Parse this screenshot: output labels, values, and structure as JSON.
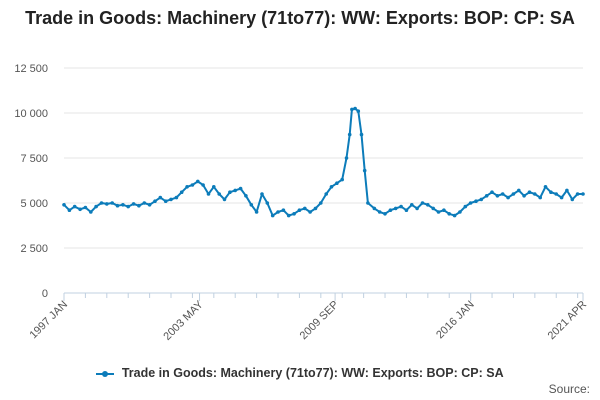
{
  "chart_data": {
    "type": "line",
    "title": "Trade in Goods: Machinery (71to77): WW: Exports: BOP: CP: SA",
    "ylim": [
      0,
      12500
    ],
    "yticks": [
      0,
      2500,
      5000,
      7500,
      10000,
      12500
    ],
    "ytick_labels": [
      "0",
      "2 500",
      "5 000",
      "7 500",
      "10 000",
      "12 500"
    ],
    "xlim": [
      1997.0,
      2021.25
    ],
    "xtick_labels": [
      "1997 JAN",
      "2003 MAY",
      "2009 SEP",
      "2016 JAN",
      "2021 APR"
    ],
    "xtick_values": [
      1997.0,
      2003.333,
      2009.667,
      2016.0,
      2021.25
    ],
    "grid": true,
    "legend_position": "bottom",
    "series": [
      {
        "name": "Trade in Goods: Machinery (71to77): WW: Exports: BOP: CP: SA",
        "color": "#0c7cba",
        "points": [
          [
            1997.0,
            4900
          ],
          [
            1997.25,
            4600
          ],
          [
            1997.5,
            4800
          ],
          [
            1997.75,
            4650
          ],
          [
            1998.0,
            4750
          ],
          [
            1998.25,
            4500
          ],
          [
            1998.5,
            4800
          ],
          [
            1998.75,
            5000
          ],
          [
            1999.0,
            4950
          ],
          [
            1999.25,
            5000
          ],
          [
            1999.5,
            4850
          ],
          [
            1999.75,
            4900
          ],
          [
            2000.0,
            4800
          ],
          [
            2000.25,
            4950
          ],
          [
            2000.5,
            4850
          ],
          [
            2000.75,
            5000
          ],
          [
            2001.0,
            4900
          ],
          [
            2001.25,
            5100
          ],
          [
            2001.5,
            5300
          ],
          [
            2001.75,
            5100
          ],
          [
            2002.0,
            5200
          ],
          [
            2002.25,
            5300
          ],
          [
            2002.5,
            5600
          ],
          [
            2002.75,
            5900
          ],
          [
            2003.0,
            6000
          ],
          [
            2003.25,
            6200
          ],
          [
            2003.5,
            6000
          ],
          [
            2003.75,
            5500
          ],
          [
            2004.0,
            5900
          ],
          [
            2004.25,
            5500
          ],
          [
            2004.5,
            5200
          ],
          [
            2004.75,
            5600
          ],
          [
            2005.0,
            5700
          ],
          [
            2005.25,
            5800
          ],
          [
            2005.5,
            5400
          ],
          [
            2005.75,
            4900
          ],
          [
            2006.0,
            4500
          ],
          [
            2006.25,
            5500
          ],
          [
            2006.5,
            5000
          ],
          [
            2006.75,
            4300
          ],
          [
            2007.0,
            4500
          ],
          [
            2007.25,
            4600
          ],
          [
            2007.5,
            4300
          ],
          [
            2007.75,
            4400
          ],
          [
            2008.0,
            4600
          ],
          [
            2008.25,
            4700
          ],
          [
            2008.5,
            4500
          ],
          [
            2008.75,
            4700
          ],
          [
            2009.0,
            5000
          ],
          [
            2009.25,
            5500
          ],
          [
            2009.5,
            5900
          ],
          [
            2009.75,
            6100
          ],
          [
            2010.0,
            6300
          ],
          [
            2010.2,
            7500
          ],
          [
            2010.35,
            8800
          ],
          [
            2010.45,
            10200
          ],
          [
            2010.6,
            10250
          ],
          [
            2010.75,
            10100
          ],
          [
            2010.9,
            8800
          ],
          [
            2011.05,
            6800
          ],
          [
            2011.2,
            5000
          ],
          [
            2011.5,
            4700
          ],
          [
            2011.75,
            4500
          ],
          [
            2012.0,
            4400
          ],
          [
            2012.25,
            4600
          ],
          [
            2012.5,
            4700
          ],
          [
            2012.75,
            4800
          ],
          [
            2013.0,
            4600
          ],
          [
            2013.25,
            4900
          ],
          [
            2013.5,
            4700
          ],
          [
            2013.75,
            5000
          ],
          [
            2014.0,
            4900
          ],
          [
            2014.25,
            4700
          ],
          [
            2014.5,
            4500
          ],
          [
            2014.75,
            4600
          ],
          [
            2015.0,
            4400
          ],
          [
            2015.25,
            4300
          ],
          [
            2015.5,
            4500
          ],
          [
            2015.75,
            4800
          ],
          [
            2016.0,
            5000
          ],
          [
            2016.25,
            5100
          ],
          [
            2016.5,
            5200
          ],
          [
            2016.75,
            5400
          ],
          [
            2017.0,
            5600
          ],
          [
            2017.25,
            5400
          ],
          [
            2017.5,
            5500
          ],
          [
            2017.75,
            5300
          ],
          [
            2018.0,
            5500
          ],
          [
            2018.25,
            5700
          ],
          [
            2018.5,
            5400
          ],
          [
            2018.75,
            5600
          ],
          [
            2019.0,
            5500
          ],
          [
            2019.25,
            5300
          ],
          [
            2019.5,
            5900
          ],
          [
            2019.75,
            5600
          ],
          [
            2020.0,
            5500
          ],
          [
            2020.25,
            5300
          ],
          [
            2020.5,
            5700
          ],
          [
            2020.75,
            5200
          ],
          [
            2021.0,
            5500
          ],
          [
            2021.25,
            5500
          ]
        ]
      }
    ]
  },
  "legend": {
    "label": "Trade in Goods: Machinery (71to77): WW: Exports: BOP: CP: SA"
  },
  "footer": {
    "source_label": "Source:"
  }
}
